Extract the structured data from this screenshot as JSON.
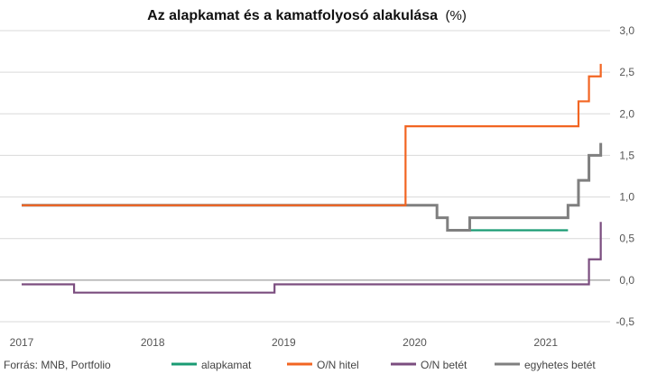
{
  "chart_data": {
    "type": "line",
    "step": true,
    "title": "Az alapkamat és a kamatfolyosó alakulása",
    "title_unit": "(%)",
    "source": "Forrás: MNB, Portfolio",
    "xlabel": "",
    "ylabel": "",
    "xlim": [
      2017.0,
      2021.45
    ],
    "ylim": [
      -0.5,
      3.0
    ],
    "x_ticks": [
      "2017",
      "2018",
      "2019",
      "2020",
      "2021"
    ],
    "y_ticks": [
      "3,0",
      "2,5",
      "2,0",
      "1,5",
      "1,0",
      "0,5",
      "0,0",
      "-0,5"
    ],
    "grid": true,
    "legend_position": "bottom",
    "series": [
      {
        "name": "alapkamat",
        "color": "#1a9b73",
        "x": [
          2017.0,
          2019.93,
          2020.17,
          2020.25,
          2021.17
        ],
        "y": [
          0.9,
          0.9,
          0.75,
          0.6,
          0.6
        ]
      },
      {
        "name": "O/N hitel",
        "color": "#f26522",
        "x": [
          2017.0,
          2019.93,
          2021.17,
          2021.25,
          2021.33,
          2021.42
        ],
        "y": [
          0.9,
          1.85,
          1.85,
          2.15,
          2.45,
          2.6
        ]
      },
      {
        "name": "O/N betét",
        "color": "#7b4d7f",
        "x": [
          2017.0,
          2017.4,
          2018.93,
          2021.25,
          2021.33,
          2021.42
        ],
        "y": [
          -0.05,
          -0.15,
          -0.05,
          -0.05,
          0.25,
          0.55
        ],
        "end": {
          "x": 2021.42,
          "y": 0.7
        }
      },
      {
        "name": "egyhetes betét",
        "color": "#7f7f7f",
        "x": [
          2017.0,
          2019.93,
          2020.17,
          2020.25,
          2020.42,
          2021.17,
          2021.25,
          2021.33,
          2021.42
        ],
        "y": [
          0.9,
          0.9,
          0.75,
          0.6,
          0.75,
          0.9,
          1.2,
          1.5,
          1.5
        ],
        "end": {
          "x": 2021.42,
          "y": 1.65
        }
      }
    ]
  }
}
